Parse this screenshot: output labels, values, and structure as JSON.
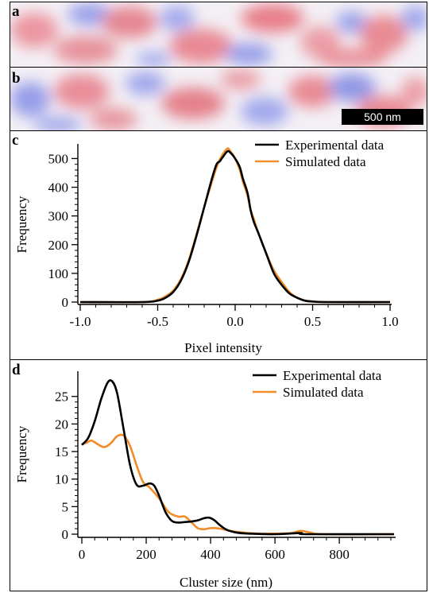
{
  "panels": {
    "a": "a",
    "b": "b",
    "c": "c",
    "d": "d"
  },
  "scale_bar": "500 nm",
  "colors": {
    "experimental": "#000000",
    "simulated": "#f28c28",
    "map_red": "#e8606a",
    "map_blue": "#6b73e0"
  },
  "chart_data": [
    {
      "type": "line",
      "panel": "c",
      "xlabel": "Pixel intensity",
      "ylabel": "Frequency",
      "xlim": [
        -1.0,
        1.0
      ],
      "ylim": [
        0,
        540
      ],
      "xticks": [
        "-1.0",
        "-0.5",
        "0.0",
        "0.5",
        "1.0"
      ],
      "yticks": [
        "0",
        "100",
        "200",
        "300",
        "400",
        "500"
      ],
      "legend": "top-right",
      "series": [
        {
          "name": "Experimental data",
          "x": [
            -1.0,
            -0.6,
            -0.5,
            -0.45,
            -0.4,
            -0.35,
            -0.3,
            -0.25,
            -0.2,
            -0.15,
            -0.12,
            -0.1,
            -0.08,
            -0.05,
            -0.03,
            0.0,
            0.03,
            0.05,
            0.08,
            0.1,
            0.12,
            0.15,
            0.2,
            0.25,
            0.3,
            0.35,
            0.4,
            0.45,
            0.5,
            0.6,
            1.0
          ],
          "values": [
            0,
            0,
            5,
            15,
            35,
            75,
            140,
            230,
            330,
            430,
            480,
            490,
            505,
            525,
            520,
            500,
            470,
            430,
            380,
            320,
            280,
            240,
            170,
            100,
            60,
            30,
            15,
            5,
            2,
            0,
            0
          ]
        },
        {
          "name": "Simulated data",
          "x": [
            -1.0,
            -0.6,
            -0.5,
            -0.45,
            -0.4,
            -0.35,
            -0.3,
            -0.25,
            -0.2,
            -0.15,
            -0.12,
            -0.1,
            -0.08,
            -0.05,
            -0.03,
            0.0,
            0.03,
            0.05,
            0.08,
            0.1,
            0.12,
            0.15,
            0.2,
            0.25,
            0.3,
            0.35,
            0.4,
            0.45,
            0.5,
            0.6,
            1.0
          ],
          "values": [
            0,
            0,
            8,
            20,
            40,
            80,
            145,
            235,
            330,
            420,
            470,
            495,
            515,
            535,
            525,
            500,
            460,
            420,
            370,
            320,
            290,
            240,
            170,
            110,
            70,
            35,
            15,
            5,
            2,
            0,
            0
          ]
        }
      ]
    },
    {
      "type": "line",
      "panel": "d",
      "xlabel": "Cluster size (nm)",
      "ylabel": "Frequency",
      "xlim": [
        0,
        970
      ],
      "ylim": [
        0,
        29
      ],
      "xticks": [
        "0",
        "200",
        "400",
        "600",
        "800"
      ],
      "yticks": [
        "0",
        "5",
        "10",
        "15",
        "20",
        "25"
      ],
      "legend": "top-right",
      "series": [
        {
          "name": "Experimental data",
          "x": [
            0,
            20,
            40,
            60,
            80,
            95,
            110,
            130,
            150,
            170,
            190,
            210,
            225,
            240,
            260,
            280,
            300,
            320,
            340,
            360,
            380,
            395,
            410,
            430,
            450,
            480,
            520,
            600,
            680,
            700,
            970
          ],
          "values": [
            16.2,
            17.5,
            20.5,
            24.5,
            27.5,
            27.7,
            25.5,
            19,
            12.5,
            9,
            8.8,
            9.2,
            8.8,
            7,
            4,
            2.4,
            2.1,
            2.2,
            2.3,
            2.5,
            2.9,
            3,
            2.6,
            1.6,
            0.8,
            0.3,
            0.1,
            0,
            0.2,
            0,
            0
          ]
        },
        {
          "name": "Simulated data",
          "x": [
            0,
            15,
            30,
            50,
            70,
            90,
            110,
            130,
            150,
            170,
            190,
            210,
            240,
            270,
            300,
            320,
            340,
            360,
            380,
            400,
            430,
            460,
            500,
            550,
            600,
            650,
            680,
            710,
            750,
            970
          ],
          "values": [
            16.3,
            16.6,
            17,
            16.3,
            15.8,
            16.5,
            17.8,
            17.9,
            16,
            12.5,
            9.5,
            8.5,
            6.5,
            4,
            3.2,
            3.2,
            2.2,
            1.1,
            0.9,
            1.1,
            1,
            0.6,
            0.3,
            0.1,
            0.1,
            0.2,
            0.6,
            0.3,
            0,
            0
          ]
        }
      ]
    }
  ]
}
